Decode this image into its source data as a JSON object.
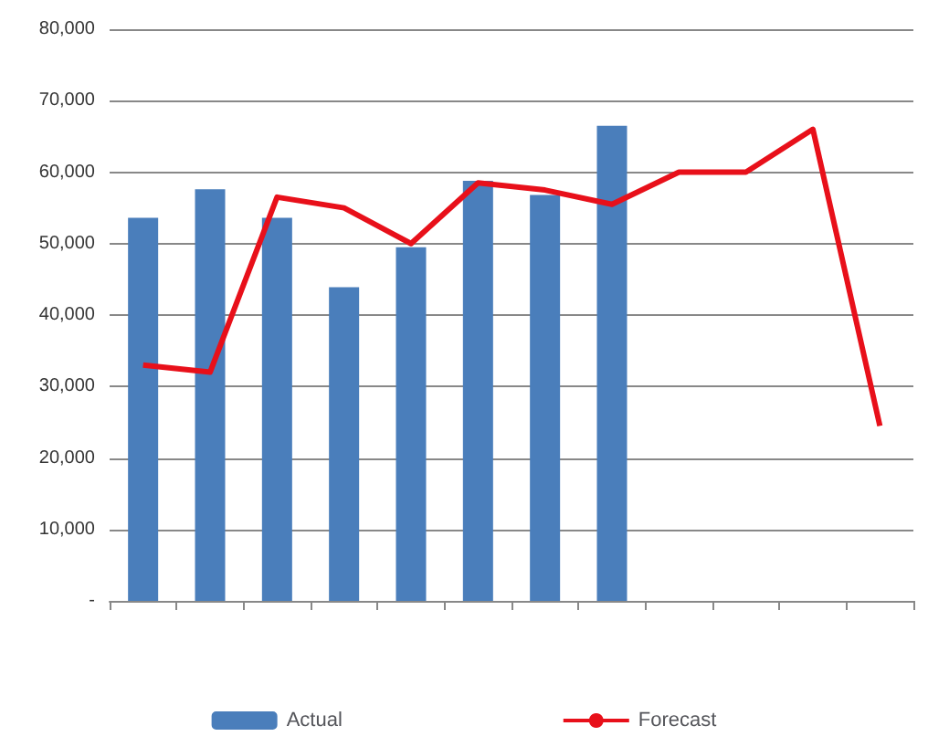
{
  "chart_data": {
    "type": "bar",
    "categories": [
      null,
      null,
      null,
      null,
      null,
      null,
      null,
      null,
      null,
      null,
      null,
      null
    ],
    "series": [
      {
        "name": "Actual",
        "color": "#4a7ebb",
        "values": [
          53600,
          57600,
          53600,
          43900,
          49500,
          58800,
          56800,
          66500,
          null,
          null,
          null,
          null
        ]
      },
      {
        "name": "Forecast",
        "type": "line",
        "color": "#e8101a",
        "values": [
          33000,
          32000,
          56500,
          55000,
          50000,
          58500,
          57500,
          55500,
          60000,
          60000,
          66000,
          24500
        ]
      }
    ],
    "ylim": [
      0,
      80000
    ],
    "yticks": [
      {
        "value": 0,
        "label": "-"
      },
      {
        "value": 10000,
        "label": "10,000"
      },
      {
        "value": 20000,
        "label": "20,000"
      },
      {
        "value": 30000,
        "label": "30,000"
      },
      {
        "value": 40000,
        "label": "40,000"
      },
      {
        "value": 50000,
        "label": "50,000"
      },
      {
        "value": 60000,
        "label": "60,000"
      },
      {
        "value": 70000,
        "label": "70,000"
      },
      {
        "value": 80000,
        "label": "80,000"
      }
    ],
    "grid": "y",
    "legend": "bottom",
    "marker": "none"
  }
}
